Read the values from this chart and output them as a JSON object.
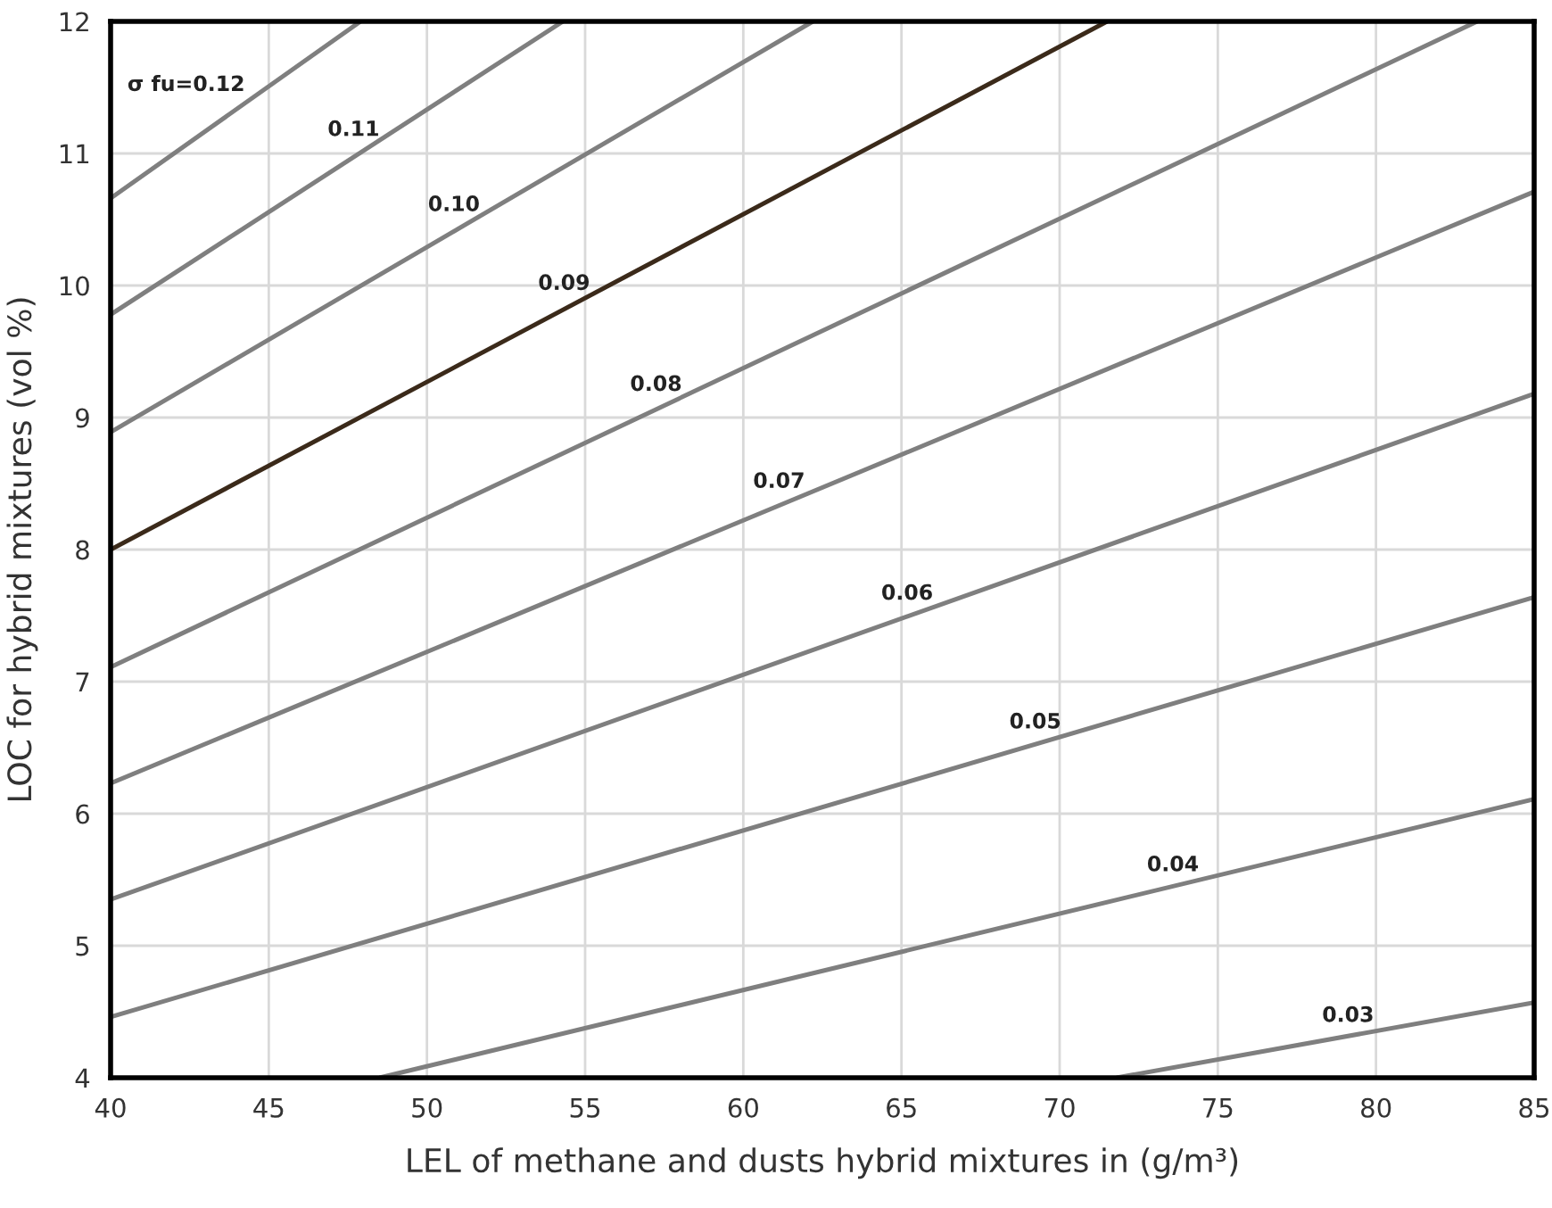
{
  "chart_data": {
    "type": "line",
    "xlabel": "LEL of methane and dusts hybrid mixtures in (g/m³)",
    "ylabel": "LOC for hybrid mixtures (vol %)",
    "xlim": [
      40,
      85
    ],
    "ylim": [
      4,
      12
    ],
    "xticks": [
      40,
      45,
      50,
      55,
      60,
      65,
      70,
      75,
      80,
      85
    ],
    "yticks": [
      4,
      5,
      6,
      7,
      8,
      9,
      10,
      11,
      12
    ],
    "grid": true,
    "marker": "none",
    "line_style": "solid",
    "series": [
      {
        "name": "σ fu=0.12",
        "color": "#7f7f7f",
        "x": [
          40,
          47.9
        ],
        "values": [
          10.66,
          12
        ]
      },
      {
        "name": "0.11",
        "color": "#7f7f7f",
        "x": [
          40,
          54.3
        ],
        "values": [
          9.78,
          12
        ]
      },
      {
        "name": "0.10",
        "color": "#7f7f7f",
        "x": [
          40,
          62.2
        ],
        "values": [
          8.89,
          12
        ]
      },
      {
        "name": "0.09",
        "color": "#3b2a1a",
        "x": [
          40,
          71.5
        ],
        "values": [
          8.0,
          12
        ]
      },
      {
        "name": "0.08",
        "color": "#7f7f7f",
        "x": [
          40,
          83.2
        ],
        "values": [
          7.11,
          12
        ]
      },
      {
        "name": "0.07",
        "color": "#7f7f7f",
        "x": [
          40,
          85
        ],
        "values": [
          6.23,
          10.71
        ]
      },
      {
        "name": "0.06",
        "color": "#7f7f7f",
        "x": [
          40,
          85
        ],
        "values": [
          5.35,
          9.18
        ]
      },
      {
        "name": "0.05",
        "color": "#7f7f7f",
        "x": [
          40,
          85
        ],
        "values": [
          4.46,
          7.64
        ]
      },
      {
        "name": "0.04",
        "color": "#7f7f7f",
        "x": [
          48.5,
          85
        ],
        "values": [
          4,
          6.11
        ]
      },
      {
        "name": "0.03",
        "color": "#7f7f7f",
        "x": [
          71.8,
          85
        ],
        "values": [
          4,
          4.57
        ]
      }
    ]
  }
}
